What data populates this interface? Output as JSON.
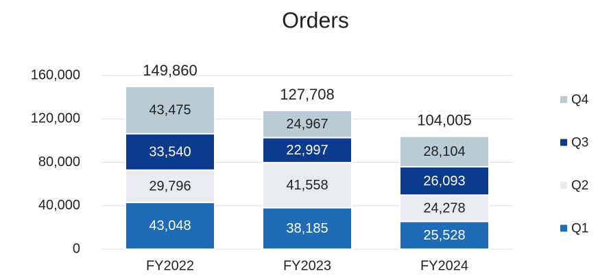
{
  "chart_data": {
    "type": "stacked_bar",
    "title": "Orders",
    "categories": [
      "FY2022",
      "FY2023",
      "FY2024"
    ],
    "series": [
      {
        "name": "Q1",
        "color": "#1f6bb5",
        "label_color": "#ffffff",
        "values": [
          43048,
          38185,
          25528
        ],
        "value_labels": [
          "43,048",
          "38,185",
          "25,528"
        ]
      },
      {
        "name": "Q2",
        "color": "#e8ecf0",
        "label_color": "#222222",
        "values": [
          29796,
          41558,
          24278
        ],
        "value_labels": [
          "29,796",
          "41,558",
          "24,278"
        ]
      },
      {
        "name": "Q3",
        "color": "#0c3a8c",
        "label_color": "#ffffff",
        "values": [
          33540,
          22997,
          26093
        ],
        "value_labels": [
          "33,540",
          "22,997",
          "26,093"
        ]
      },
      {
        "name": "Q4",
        "color": "#b9ccd6",
        "label_color": "#222222",
        "values": [
          43475,
          24967,
          28104
        ],
        "value_labels": [
          "43,475",
          "24,967",
          "28,104"
        ]
      }
    ],
    "totals": [
      149860,
      127708,
      104005
    ],
    "total_labels": [
      "149,860",
      "127,708",
      "104,005"
    ],
    "ylim": [
      0,
      160000
    ],
    "yticks": [
      0,
      {
        "value": 40000,
        "label": "40,000"
      },
      {
        "value": 80000,
        "label": "80,000"
      },
      {
        "value": 120000,
        "label": "120,000"
      },
      {
        "value": 160000,
        "label": "160,000"
      }
    ],
    "grid": true,
    "legend": "right"
  }
}
